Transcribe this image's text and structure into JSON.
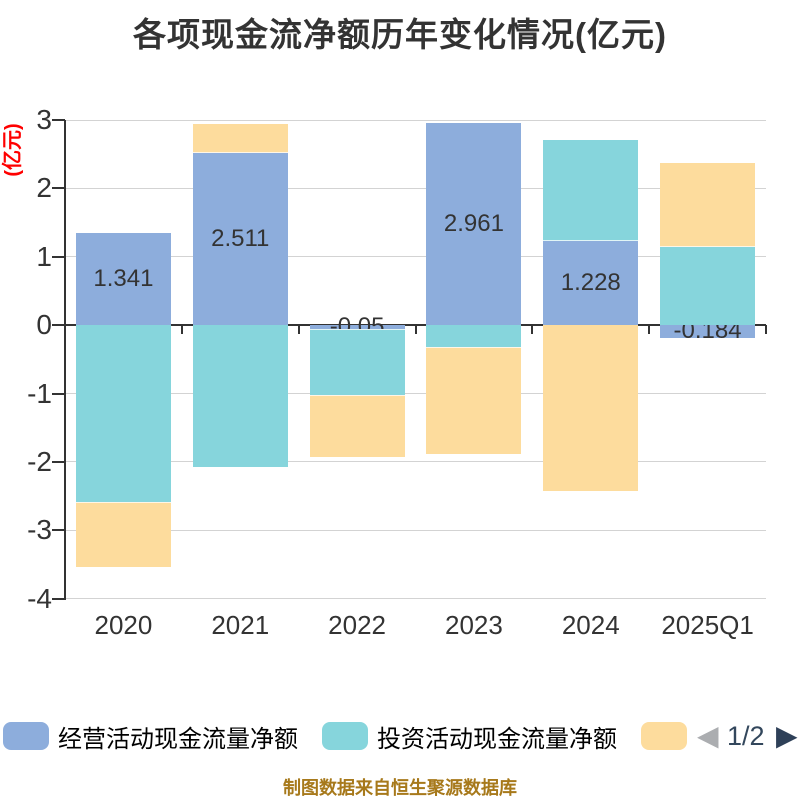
{
  "title": {
    "text": "各项现金流净额历年变化情况(亿元)",
    "color": "#333333"
  },
  "chart_data": {
    "type": "bar",
    "stacked": true,
    "title": "各项现金流净额历年变化情况(亿元)",
    "y_axis_name": "(亿元)",
    "y_axis_name_color": "#FF0000",
    "categories": [
      "2020",
      "2021",
      "2022",
      "2023",
      "2024",
      "2025Q1"
    ],
    "series": [
      {
        "name": "经营活动现金流量净额",
        "color": "#8DADDC",
        "values": [
          1.341,
          2.511,
          -0.05,
          2.961,
          1.228,
          -0.184
        ],
        "data_labels": [
          "1.341",
          "2.511",
          "-0.05",
          "2.961",
          "1.228",
          "-0.184"
        ]
      },
      {
        "name": "投资活动现金流量净额",
        "color": "#86D5DC",
        "values": [
          -2.59,
          -2.07,
          -0.97,
          -0.32,
          1.48,
          1.15
        ]
      },
      {
        "name": "",
        "color": "#FDDC9D",
        "values": [
          -0.95,
          0.43,
          -0.91,
          -1.56,
          -2.42,
          1.22
        ]
      }
    ],
    "ylim": [
      -4,
      3
    ],
    "y_ticks": [
      3,
      2,
      1,
      0,
      -1,
      -2,
      -3,
      -4
    ],
    "grid": true,
    "legend_position": "bottom",
    "label_color": "#333333",
    "axis_color": "#333333",
    "grid_color": "#D3D3D3"
  },
  "legend": {
    "items": [
      {
        "label": "经营活动现金流量净额",
        "color": "#8DADDC"
      },
      {
        "label": "投资活动现金流量净额",
        "color": "#86D5DC"
      },
      {
        "label": "",
        "color": "#FDDC9D"
      }
    ],
    "pagination": {
      "prev": "◀",
      "current": "1/2",
      "next": "▶",
      "prev_color": "#ABADB0",
      "next_color": "#2E4058",
      "text_color": "#33475C"
    }
  },
  "footer": {
    "text": "制图数据来自恒生聚源数据库",
    "color": "#A7791B"
  }
}
